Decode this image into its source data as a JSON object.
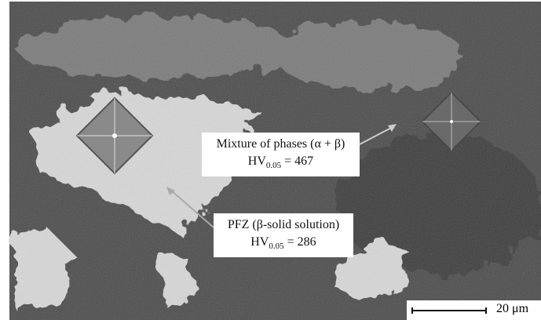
{
  "annotations": [
    {
      "title": "Mixture of phases (α + β)",
      "hardness": {
        "symbol": "HV",
        "subscript": "0.05",
        "value": "= 467"
      }
    },
    {
      "title": "PFZ (β-solid solution)",
      "hardness": {
        "symbol": "HV",
        "subscript": "0.05",
        "value": "= 286"
      }
    }
  ],
  "scale_bar": {
    "label": "20 μm"
  }
}
